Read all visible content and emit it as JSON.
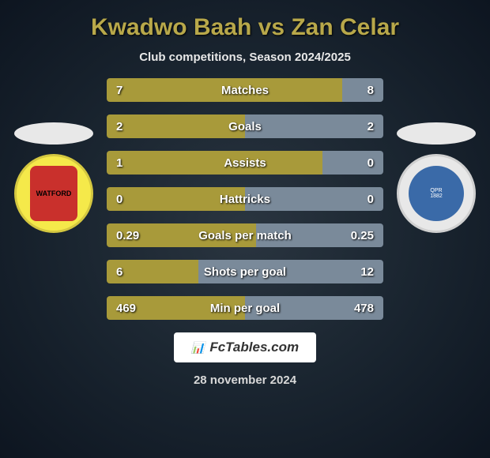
{
  "title": "Kwadwo Baah vs Zan Celar",
  "subtitle": "Club competitions, Season 2024/2025",
  "date": "28 november 2024",
  "brand": "FcTables.com",
  "crest_left": {
    "label": "WATFORD",
    "bg": "#f5e94a",
    "inner_bg": "#c9302c"
  },
  "crest_right": {
    "label": "QPR",
    "sub": "1882",
    "bg": "#e8e8e8",
    "inner_bg": "#3a6aa8"
  },
  "bar_left_color": "#a89a3a",
  "bar_right_color": "#7a8a9a",
  "stats": [
    {
      "label": "Matches",
      "left_val": "7",
      "right_val": "8",
      "left_pct": 85,
      "right_pct": 15
    },
    {
      "label": "Goals",
      "left_val": "2",
      "right_val": "2",
      "left_pct": 50,
      "right_pct": 50
    },
    {
      "label": "Assists",
      "left_val": "1",
      "right_val": "0",
      "left_pct": 78,
      "right_pct": 22
    },
    {
      "label": "Hattricks",
      "left_val": "0",
      "right_val": "0",
      "left_pct": 50,
      "right_pct": 50
    },
    {
      "label": "Goals per match",
      "left_val": "0.29",
      "right_val": "0.25",
      "left_pct": 54,
      "right_pct": 46
    },
    {
      "label": "Shots per goal",
      "left_val": "6",
      "right_val": "12",
      "left_pct": 33,
      "right_pct": 67
    },
    {
      "label": "Min per goal",
      "left_val": "469",
      "right_val": "478",
      "left_pct": 50,
      "right_pct": 50
    }
  ]
}
